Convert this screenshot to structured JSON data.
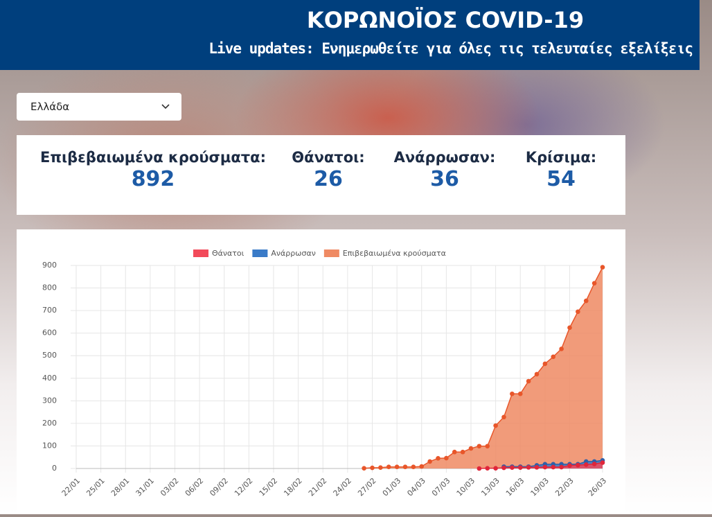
{
  "header": {
    "title": "ΚΟΡΩΝΟΪΟΣ COVID-19",
    "subtitle": "Live updates: Ενημερωθείτε για όλες τις τελευταίες εξελίξεις"
  },
  "selector": {
    "value": "Ελλάδα"
  },
  "stats": [
    {
      "label": "Επιβεβαιωμένα κρούσματα:",
      "value": 892
    },
    {
      "label": "Θάνατοι:",
      "value": 26
    },
    {
      "label": "Ανάρρωσαν:",
      "value": 36
    },
    {
      "label": "Κρίσιμα:",
      "value": 54
    }
  ],
  "chart_data": {
    "type": "area",
    "categories": [
      "22/01",
      null,
      null,
      "25/01",
      null,
      null,
      "28/01",
      null,
      null,
      "31/01",
      null,
      null,
      "03/02",
      null,
      null,
      "06/02",
      null,
      null,
      "09/02",
      null,
      null,
      "12/02",
      null,
      null,
      "15/02",
      null,
      null,
      "18/02",
      null,
      null,
      "21/02",
      null,
      null,
      "24/02",
      null,
      null,
      "27/02",
      null,
      null,
      "01/03",
      null,
      null,
      "04/03",
      null,
      null,
      "07/03",
      null,
      null,
      "10/03",
      null,
      null,
      "13/03",
      null,
      null,
      "16/03",
      null,
      null,
      "19/03",
      null,
      null,
      "22/03",
      null,
      null,
      null,
      "26/03"
    ],
    "series": [
      {
        "name": "Θάνατοι",
        "color": "#f24a5a",
        "point_color": "#e0263a",
        "values": [
          null,
          null,
          null,
          null,
          null,
          null,
          null,
          null,
          null,
          null,
          null,
          null,
          null,
          null,
          null,
          null,
          null,
          null,
          null,
          null,
          null,
          null,
          null,
          null,
          null,
          null,
          null,
          null,
          null,
          null,
          null,
          null,
          null,
          null,
          null,
          null,
          null,
          null,
          null,
          null,
          null,
          null,
          null,
          null,
          null,
          null,
          null,
          null,
          null,
          0,
          1,
          1,
          3,
          4,
          4,
          5,
          5,
          6,
          6,
          6,
          13,
          15,
          17,
          20,
          26
        ]
      },
      {
        "name": "Ανάρρωσαν",
        "color": "#3a7bc8",
        "point_color": "#2f5fa8",
        "values": [
          null,
          null,
          null,
          null,
          null,
          null,
          null,
          null,
          null,
          null,
          null,
          null,
          null,
          null,
          null,
          null,
          null,
          null,
          null,
          null,
          null,
          null,
          null,
          null,
          null,
          null,
          null,
          null,
          null,
          null,
          null,
          null,
          null,
          null,
          null,
          null,
          null,
          null,
          null,
          null,
          null,
          null,
          null,
          null,
          null,
          null,
          null,
          null,
          null,
          null,
          null,
          null,
          8,
          8,
          8,
          8,
          14,
          19,
          19,
          19,
          19,
          19,
          31,
          31,
          36
        ]
      },
      {
        "name": "Επιβεβαιωμένα κρούσματα",
        "color": "#ef8a63",
        "point_color": "#e8562a",
        "values": [
          null,
          null,
          null,
          null,
          null,
          null,
          null,
          null,
          null,
          null,
          null,
          null,
          null,
          null,
          null,
          null,
          null,
          null,
          null,
          null,
          null,
          null,
          null,
          null,
          null,
          null,
          null,
          null,
          null,
          null,
          null,
          null,
          null,
          null,
          null,
          1,
          3,
          4,
          7,
          7,
          7,
          7,
          9,
          31,
          45,
          46,
          73,
          73,
          89,
          99,
          99,
          190,
          228,
          331,
          331,
          387,
          418,
          464,
          495,
          530,
          624,
          695,
          743,
          821,
          892
        ]
      }
    ],
    "ylim": [
      0,
      900
    ],
    "yticks": [
      0,
      100,
      200,
      300,
      400,
      500,
      600,
      700,
      800,
      900
    ],
    "grid": true,
    "legend": "top"
  }
}
